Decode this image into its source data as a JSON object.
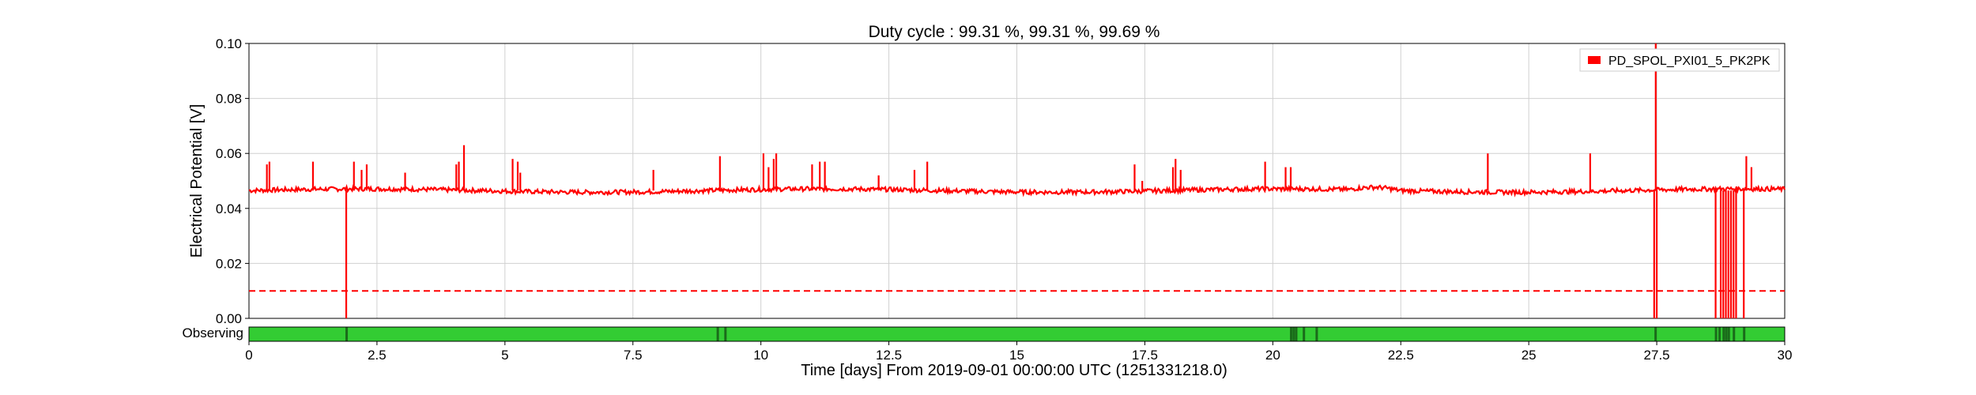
{
  "chart_data": {
    "type": "line",
    "title": "Duty cycle : 99.31 %, 99.31 %, 99.69 %",
    "xlabel": "Time [days] From 2019-09-01 00:00:00 UTC (1251331218.0)",
    "ylabel": "Electrical Potential [V]",
    "xlim": [
      0,
      30
    ],
    "ylim": [
      0,
      0.1
    ],
    "xticks": [
      "0",
      "2.5",
      "5",
      "7.5",
      "10",
      "12.5",
      "15",
      "17.5",
      "20",
      "22.5",
      "25",
      "27.5",
      "30"
    ],
    "xtick_values": [
      0,
      2.5,
      5,
      7.5,
      10,
      12.5,
      15,
      17.5,
      20,
      22.5,
      25,
      27.5,
      30
    ],
    "yticks": [
      "0.00",
      "0.02",
      "0.04",
      "0.06",
      "0.08",
      "0.10"
    ],
    "ytick_values": [
      0,
      0.02,
      0.04,
      0.06,
      0.08,
      0.1
    ],
    "grid": true,
    "legend_position": "top-right",
    "series": [
      {
        "name": "PD_SPOL_PXI01_5_PK2PK",
        "color": "#ff0000",
        "baseline": 0.0465,
        "spikes": [
          {
            "x": 0.35,
            "y": 0.056
          },
          {
            "x": 0.4,
            "y": 0.057
          },
          {
            "x": 1.25,
            "y": 0.057
          },
          {
            "x": 1.9,
            "y": 0.0
          },
          {
            "x": 2.05,
            "y": 0.057
          },
          {
            "x": 2.2,
            "y": 0.054
          },
          {
            "x": 2.3,
            "y": 0.056
          },
          {
            "x": 3.05,
            "y": 0.053
          },
          {
            "x": 4.05,
            "y": 0.056
          },
          {
            "x": 4.1,
            "y": 0.057
          },
          {
            "x": 4.2,
            "y": 0.063
          },
          {
            "x": 5.15,
            "y": 0.058
          },
          {
            "x": 5.25,
            "y": 0.057
          },
          {
            "x": 5.3,
            "y": 0.053
          },
          {
            "x": 7.9,
            "y": 0.054
          },
          {
            "x": 9.2,
            "y": 0.059
          },
          {
            "x": 10.05,
            "y": 0.06
          },
          {
            "x": 10.15,
            "y": 0.055
          },
          {
            "x": 10.25,
            "y": 0.058
          },
          {
            "x": 10.3,
            "y": 0.06
          },
          {
            "x": 11.0,
            "y": 0.056
          },
          {
            "x": 11.15,
            "y": 0.057
          },
          {
            "x": 11.25,
            "y": 0.057
          },
          {
            "x": 12.3,
            "y": 0.052
          },
          {
            "x": 13.0,
            "y": 0.054
          },
          {
            "x": 13.25,
            "y": 0.057
          },
          {
            "x": 17.3,
            "y": 0.056
          },
          {
            "x": 17.45,
            "y": 0.05
          },
          {
            "x": 18.05,
            "y": 0.055
          },
          {
            "x": 18.1,
            "y": 0.058
          },
          {
            "x": 18.2,
            "y": 0.054
          },
          {
            "x": 19.85,
            "y": 0.057
          },
          {
            "x": 20.25,
            "y": 0.055
          },
          {
            "x": 20.35,
            "y": 0.055
          },
          {
            "x": 24.2,
            "y": 0.06
          },
          {
            "x": 26.2,
            "y": 0.06
          },
          {
            "x": 27.45,
            "y": 0.0
          },
          {
            "x": 27.48,
            "y": 0.1
          },
          {
            "x": 27.5,
            "y": 0.0
          },
          {
            "x": 28.65,
            "y": 0.0
          },
          {
            "x": 28.75,
            "y": 0.0
          },
          {
            "x": 28.8,
            "y": 0.0
          },
          {
            "x": 28.85,
            "y": 0.0
          },
          {
            "x": 28.9,
            "y": 0.0
          },
          {
            "x": 28.95,
            "y": 0.0
          },
          {
            "x": 29.0,
            "y": 0.0
          },
          {
            "x": 29.05,
            "y": 0.0
          },
          {
            "x": 29.2,
            "y": 0.0
          },
          {
            "x": 29.25,
            "y": 0.059
          },
          {
            "x": 29.35,
            "y": 0.055
          }
        ]
      }
    ],
    "threshold": {
      "y": 0.01,
      "style": "dashed",
      "color": "#ff0000"
    },
    "state_bar": {
      "label": "Observing",
      "on_color": "#33cc33",
      "off_color": "#1a6b1a",
      "off_x": [
        1.9,
        9.15,
        9.3,
        20.35,
        20.4,
        20.45,
        20.6,
        20.85,
        27.47,
        28.65,
        28.72,
        28.8,
        28.85,
        28.9,
        29.0,
        29.2
      ]
    }
  }
}
